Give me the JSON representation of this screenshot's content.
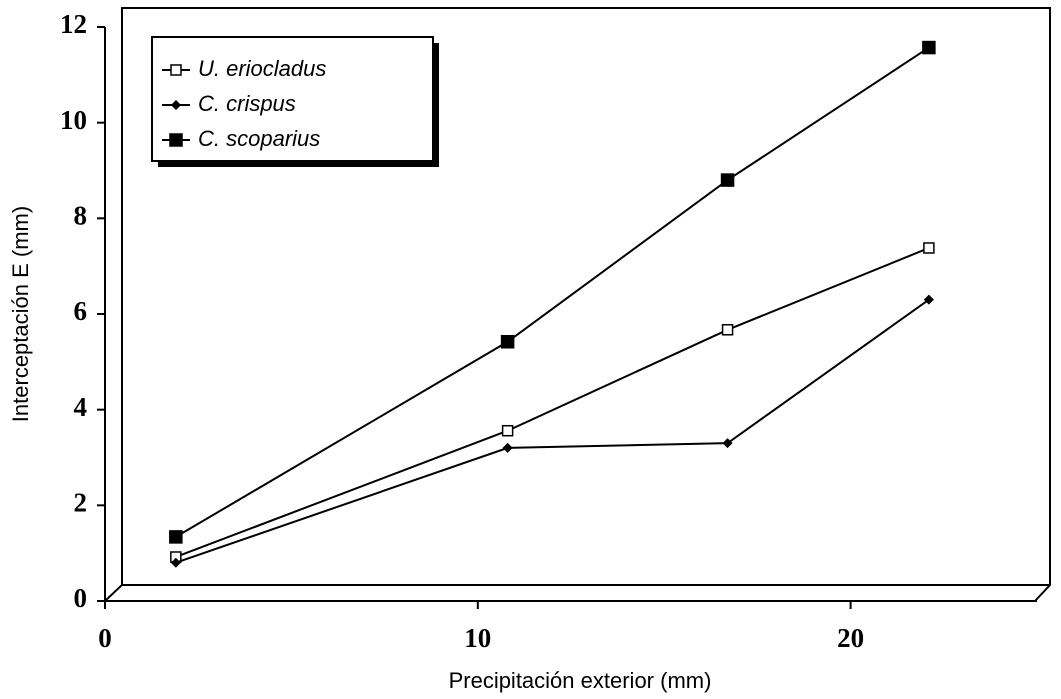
{
  "chart_data": {
    "type": "line",
    "x_label": "Precipitación exterior (mm)",
    "y_label": "Interceptación E (mm)",
    "x": [
      1.9,
      10.8,
      16.7,
      22.1
    ],
    "series": [
      {
        "name": "U. eriocladus",
        "color": "#000000",
        "marker": "open-square",
        "values": [
          0.92,
          3.56,
          5.67,
          7.38
        ]
      },
      {
        "name": "C. crispus",
        "color": "#000000",
        "marker": "diamond",
        "values": [
          0.8,
          3.2,
          3.3,
          6.3
        ]
      },
      {
        "name": "C. scoparius",
        "color": "#000000",
        "marker": "filled-square",
        "values": [
          1.34,
          5.42,
          8.8,
          11.57
        ]
      }
    ],
    "xlim": [
      0,
      25
    ],
    "xticks": [
      0,
      10,
      20
    ],
    "ylim": [
      0,
      12
    ],
    "yticks": [
      0,
      2,
      4,
      6,
      8,
      10,
      12
    ],
    "legend": "upper left",
    "grid": false
  }
}
